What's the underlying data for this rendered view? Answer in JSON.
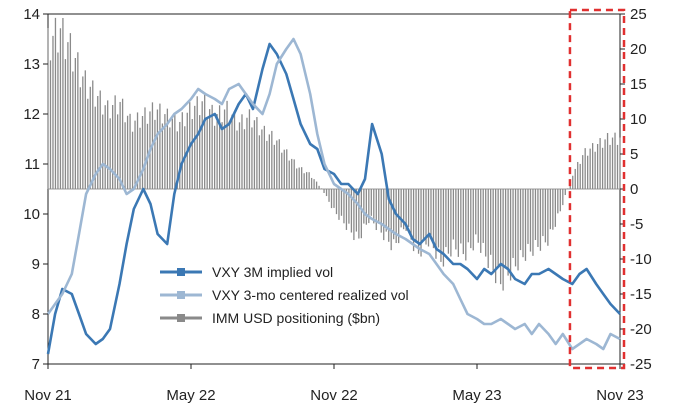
{
  "chart_data": {
    "type": "line",
    "x_axis": {
      "ticks": [
        "Nov 21",
        "May 22",
        "Nov 22",
        "May 23",
        "Nov 23"
      ],
      "range": [
        "2021-11",
        "2023-11"
      ]
    },
    "y_left": {
      "range": [
        7,
        14
      ],
      "ticks": [
        7,
        8,
        9,
        10,
        11,
        12,
        13,
        14
      ]
    },
    "y_right": {
      "range": [
        -25,
        25
      ],
      "ticks": [
        -25,
        -20,
        -15,
        -10,
        -5,
        0,
        5,
        10,
        15,
        20,
        25
      ]
    },
    "legend": {
      "placement": "bottom-center"
    },
    "colors": {
      "implied": "#3b78b4",
      "realized": "#9db7d3",
      "imm": "#8a8a8a",
      "highlight": "#e03030"
    },
    "highlight_region": {
      "x_start": "2023-09",
      "x_end": "2023-11",
      "style": "dashed-box"
    },
    "series": [
      {
        "name": "VXY 3M implied vol",
        "axis": "left",
        "style": "line",
        "t": [
          0,
          0.3,
          0.6,
          1,
          1.3,
          1.6,
          2,
          2.3,
          2.6,
          3,
          3.3,
          3.6,
          4,
          4.3,
          4.6,
          5,
          5.3,
          5.6,
          6,
          6.3,
          6.6,
          7,
          7.3,
          7.6,
          8,
          8.3,
          8.6,
          9,
          9.3,
          9.6,
          10,
          10.3,
          10.6,
          11,
          11.3,
          11.6,
          12,
          12.3,
          12.6,
          13,
          13.3,
          13.6,
          14,
          14.3,
          14.6,
          15,
          15.3,
          15.6,
          16,
          16.3,
          16.6,
          17,
          17.3,
          17.6,
          18,
          18.3,
          18.6,
          19,
          19.3,
          19.6,
          20,
          20.3,
          20.6,
          21,
          21.3,
          21.6,
          22,
          22.3,
          22.6,
          23,
          23.3,
          23.6,
          24
        ],
        "values": [
          7.2,
          8.0,
          8.5,
          8.4,
          8.0,
          7.6,
          7.4,
          7.5,
          7.7,
          8.6,
          9.4,
          10.1,
          10.5,
          10.2,
          9.6,
          9.4,
          10.4,
          11.0,
          11.4,
          11.6,
          11.9,
          12.0,
          11.7,
          11.8,
          12.2,
          12.4,
          12.1,
          12.9,
          13.4,
          13.2,
          12.8,
          12.3,
          11.8,
          11.4,
          11.3,
          10.9,
          10.8,
          10.6,
          10.6,
          10.4,
          10.7,
          11.8,
          11.2,
          10.3,
          10.0,
          9.8,
          9.5,
          9.4,
          9.6,
          9.3,
          9.2,
          9.0,
          9.0,
          8.9,
          8.7,
          8.9,
          8.8,
          9.0,
          8.9,
          8.7,
          8.6,
          8.8,
          8.8,
          8.9,
          8.8,
          8.7,
          8.6,
          8.8,
          8.9,
          8.6,
          8.4,
          8.2,
          8.0
        ]
      },
      {
        "name": "VXY 3-mo centered realized vol",
        "axis": "left",
        "style": "line",
        "t": [
          0,
          0.3,
          0.6,
          1,
          1.3,
          1.6,
          2,
          2.3,
          2.6,
          3,
          3.3,
          3.6,
          4,
          4.3,
          4.6,
          5,
          5.3,
          5.6,
          6,
          6.3,
          6.6,
          7,
          7.3,
          7.6,
          8,
          8.3,
          8.6,
          9,
          9.3,
          9.6,
          10,
          10.3,
          10.6,
          11,
          11.3,
          11.6,
          12,
          12.3,
          12.6,
          13,
          13.3,
          13.6,
          14,
          14.3,
          14.6,
          15,
          15.3,
          15.6,
          16,
          16.3,
          16.6,
          17,
          17.3,
          17.6,
          18,
          18.3,
          18.6,
          19,
          19.3,
          19.6,
          20,
          20.3,
          20.6,
          21,
          21.3,
          21.6,
          22,
          22.3,
          22.6,
          23,
          23.3,
          23.6,
          24
        ],
        "values": [
          8.0,
          8.2,
          8.4,
          8.8,
          9.6,
          10.4,
          10.8,
          11.0,
          10.9,
          10.7,
          10.4,
          10.5,
          10.9,
          11.3,
          11.6,
          11.8,
          12.0,
          12.1,
          12.3,
          12.5,
          12.4,
          12.3,
          12.2,
          12.5,
          12.6,
          12.4,
          12.2,
          12.0,
          12.4,
          13.0,
          13.3,
          13.5,
          13.2,
          12.4,
          11.6,
          11.0,
          10.6,
          10.5,
          10.4,
          10.2,
          10.0,
          9.9,
          9.8,
          9.7,
          9.6,
          9.5,
          9.4,
          9.3,
          9.2,
          9.0,
          8.8,
          8.6,
          8.3,
          8.0,
          7.9,
          7.8,
          7.8,
          7.9,
          7.8,
          7.7,
          7.8,
          7.6,
          7.8,
          7.6,
          7.4,
          7.6,
          7.3,
          7.4,
          7.5,
          7.4,
          7.3,
          7.6,
          7.5
        ]
      },
      {
        "name": "IMM USD positioning ($bn)",
        "axis": "right",
        "style": "bars",
        "t": [
          0,
          0.5,
          1,
          1.5,
          2,
          2.5,
          3,
          3.5,
          4,
          4.5,
          5,
          5.5,
          6,
          6.5,
          7,
          7.5,
          8,
          8.5,
          9,
          9.5,
          10,
          10.5,
          11,
          11.5,
          12,
          12.5,
          13,
          13.5,
          14,
          14.5,
          15,
          15.5,
          16,
          16.5,
          17,
          17.5,
          18,
          18.5,
          19,
          19.5,
          20,
          20.5,
          21,
          21.5,
          22,
          22.5,
          23,
          23.5,
          24
        ],
        "values": [
          20,
          22,
          19,
          15,
          13,
          11,
          12,
          9,
          10,
          11,
          10,
          9,
          11,
          12,
          10,
          11,
          9,
          10,
          8,
          7,
          5,
          3,
          2,
          0,
          -3,
          -5,
          -7,
          -4,
          -6,
          -8,
          -5,
          -9,
          -7,
          -10,
          -8,
          -9,
          -7,
          -10,
          -13,
          -11,
          -9,
          -8,
          -7,
          -3,
          2,
          5,
          6,
          7,
          7
        ]
      }
    ]
  }
}
